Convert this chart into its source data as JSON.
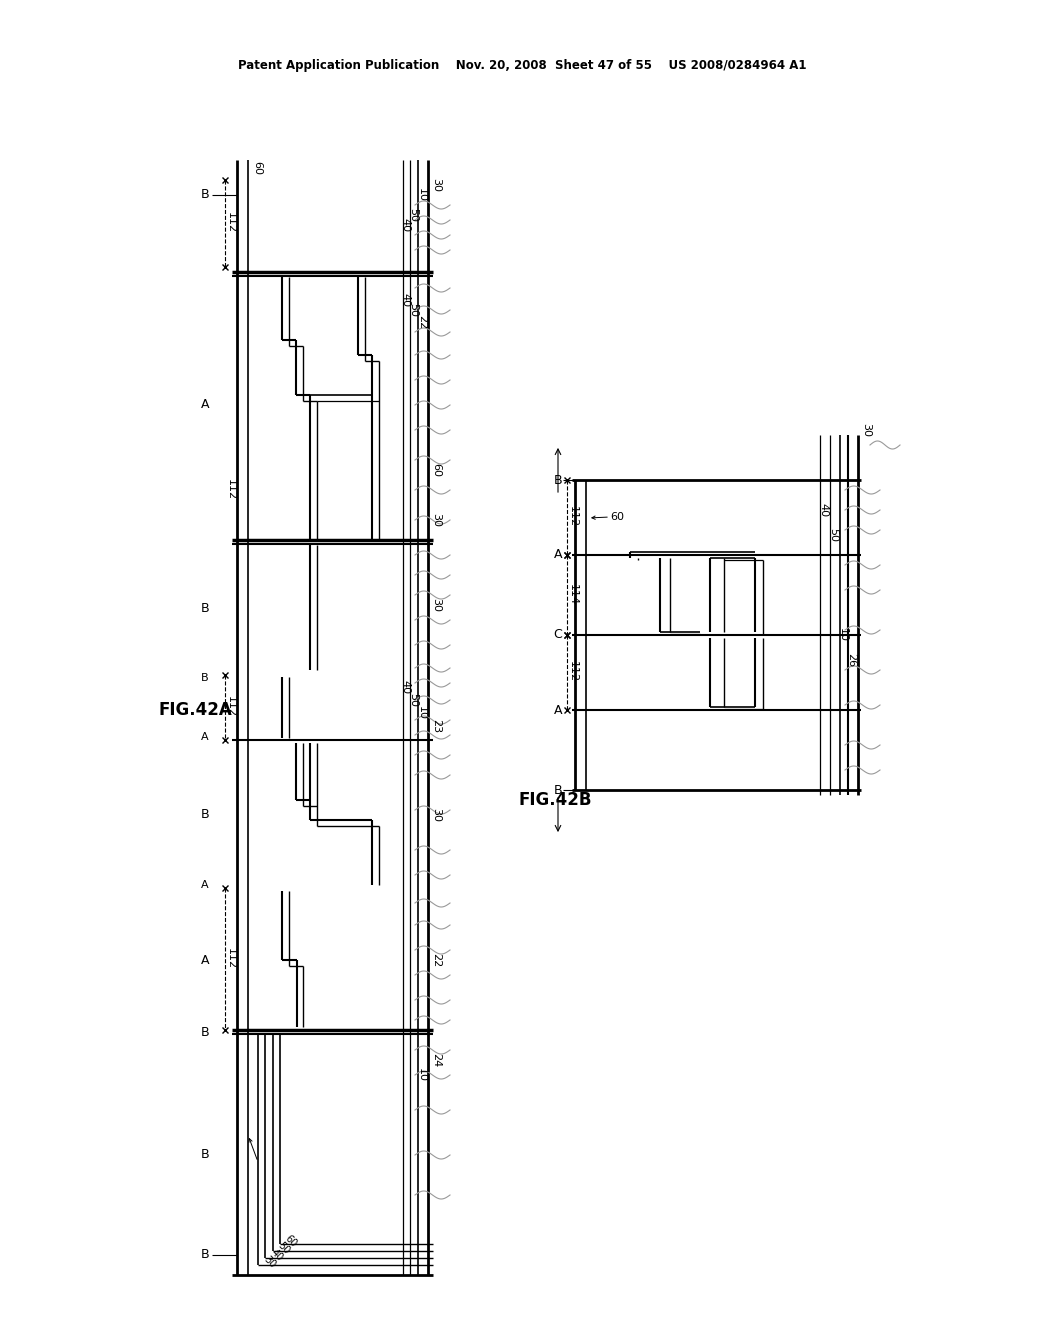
{
  "title_header": "Patent Application Publication    Nov. 20, 2008  Sheet 47 of 55    US 2008/0284964 A1",
  "fig42a_label": "FIG.42A",
  "fig42b_label": "FIG.42B",
  "bg_color": "#ffffff",
  "line_color": "#000000",
  "gray_color": "#999999"
}
